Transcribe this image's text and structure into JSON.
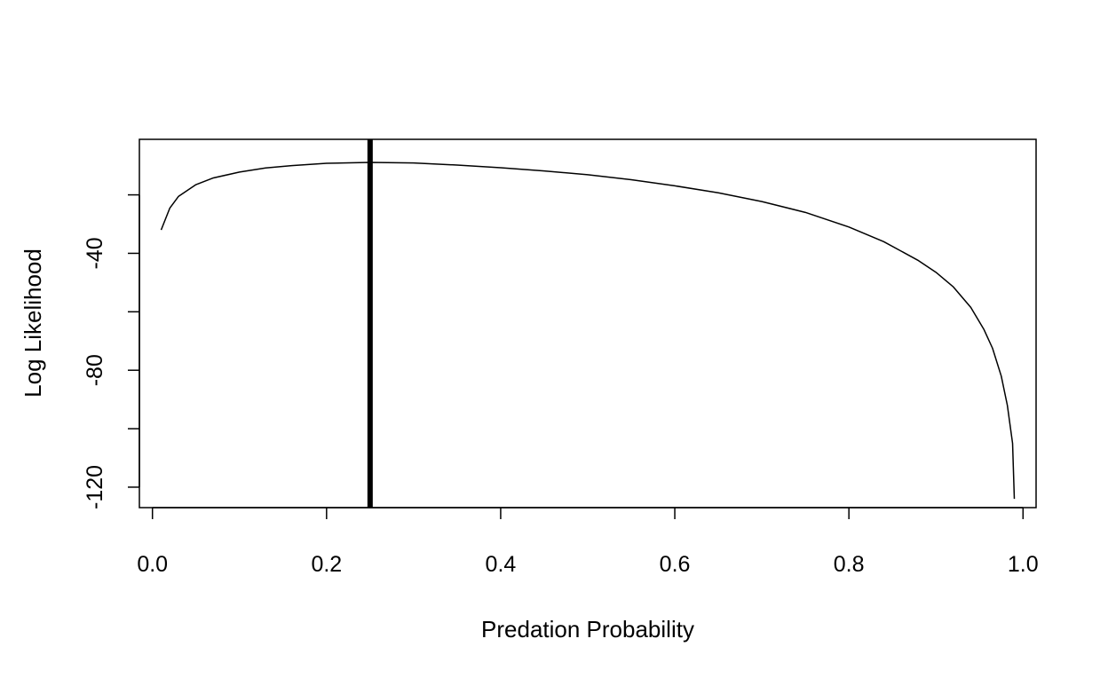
{
  "chart_data": {
    "type": "line",
    "title": "",
    "xlabel": "Predation Probability",
    "ylabel": "Log Likelihood",
    "xlim": [
      -0.015,
      1.015
    ],
    "ylim": [
      -127,
      -1
    ],
    "x_ticks": [
      0.0,
      0.2,
      0.4,
      0.6,
      0.8,
      1.0
    ],
    "x_tick_labels": [
      "0.0",
      "0.2",
      "0.4",
      "0.6",
      "0.8",
      "1.0"
    ],
    "y_ticks": [
      -20,
      -40,
      -60,
      -80,
      -100,
      -120
    ],
    "y_tick_labels": [
      "",
      "-40",
      "",
      "-80",
      "",
      "-120"
    ],
    "grid": false,
    "legend": "none",
    "series": [
      {
        "x": [
          0.01,
          0.02,
          0.03,
          0.05,
          0.07,
          0.1,
          0.13,
          0.16,
          0.2,
          0.25,
          0.3,
          0.35,
          0.4,
          0.45,
          0.5,
          0.55,
          0.6,
          0.65,
          0.7,
          0.75,
          0.8,
          0.84,
          0.88,
          0.9,
          0.92,
          0.94,
          0.955,
          0.965,
          0.975,
          0.982,
          0.988,
          0.99
        ],
        "y": [
          -32,
          -24.5,
          -20.5,
          -16.5,
          -14.2,
          -12.2,
          -10.8,
          -10,
          -9.2,
          -8.9,
          -9.1,
          -9.8,
          -10.7,
          -11.8,
          -13.1,
          -14.8,
          -16.9,
          -19.3,
          -22.3,
          -26,
          -31,
          -36,
          -42.5,
          -46.5,
          -51.5,
          -58.5,
          -66,
          -72.5,
          -82,
          -92,
          -105,
          -124
        ]
      }
    ],
    "vertical_line": {
      "x": 0.25
    }
  }
}
